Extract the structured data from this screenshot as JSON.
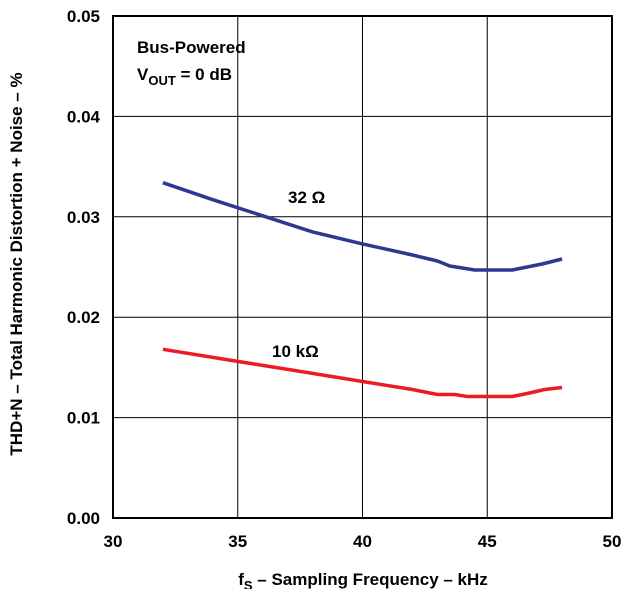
{
  "chart_data": {
    "type": "line",
    "xlabel": "fS – Sampling Frequency – kHz",
    "xlabel_main": "f",
    "xlabel_sub": "S",
    "xlabel_rest": " – Sampling Frequency – kHz",
    "ylabel": "THD+N – Total Harmonic Distortion + Noise – %",
    "xlim": [
      30,
      50
    ],
    "ylim": [
      0,
      0.05
    ],
    "xticks": [
      "30",
      "35",
      "40",
      "45",
      "50"
    ],
    "yticks": [
      "0.00",
      "0.01",
      "0.02",
      "0.03",
      "0.04",
      "0.05"
    ],
    "grid": true,
    "annotation": {
      "line1": "Bus-Powered",
      "line2_main": "V",
      "line2_sub": "OUT",
      "line2_rest": " = 0 dB"
    },
    "series": [
      {
        "name": "32 Ω",
        "color": "#2b3990",
        "x": [
          32,
          34,
          36,
          38,
          40,
          42,
          43,
          43.5,
          44.5,
          46,
          47.2,
          48
        ],
        "y": [
          0.0334,
          0.0317,
          0.0301,
          0.0285,
          0.0273,
          0.0262,
          0.0256,
          0.0251,
          0.0247,
          0.0247,
          0.0253,
          0.0258
        ]
      },
      {
        "name": "10 kΩ",
        "color": "#ed1c24",
        "x": [
          32,
          34,
          36,
          38,
          40,
          42,
          43,
          43.7,
          44.2,
          46,
          46.6,
          47.3,
          48
        ],
        "y": [
          0.0168,
          0.016,
          0.0152,
          0.0144,
          0.0136,
          0.0128,
          0.0123,
          0.0123,
          0.0121,
          0.0121,
          0.0124,
          0.0128,
          0.013
        ]
      }
    ]
  }
}
